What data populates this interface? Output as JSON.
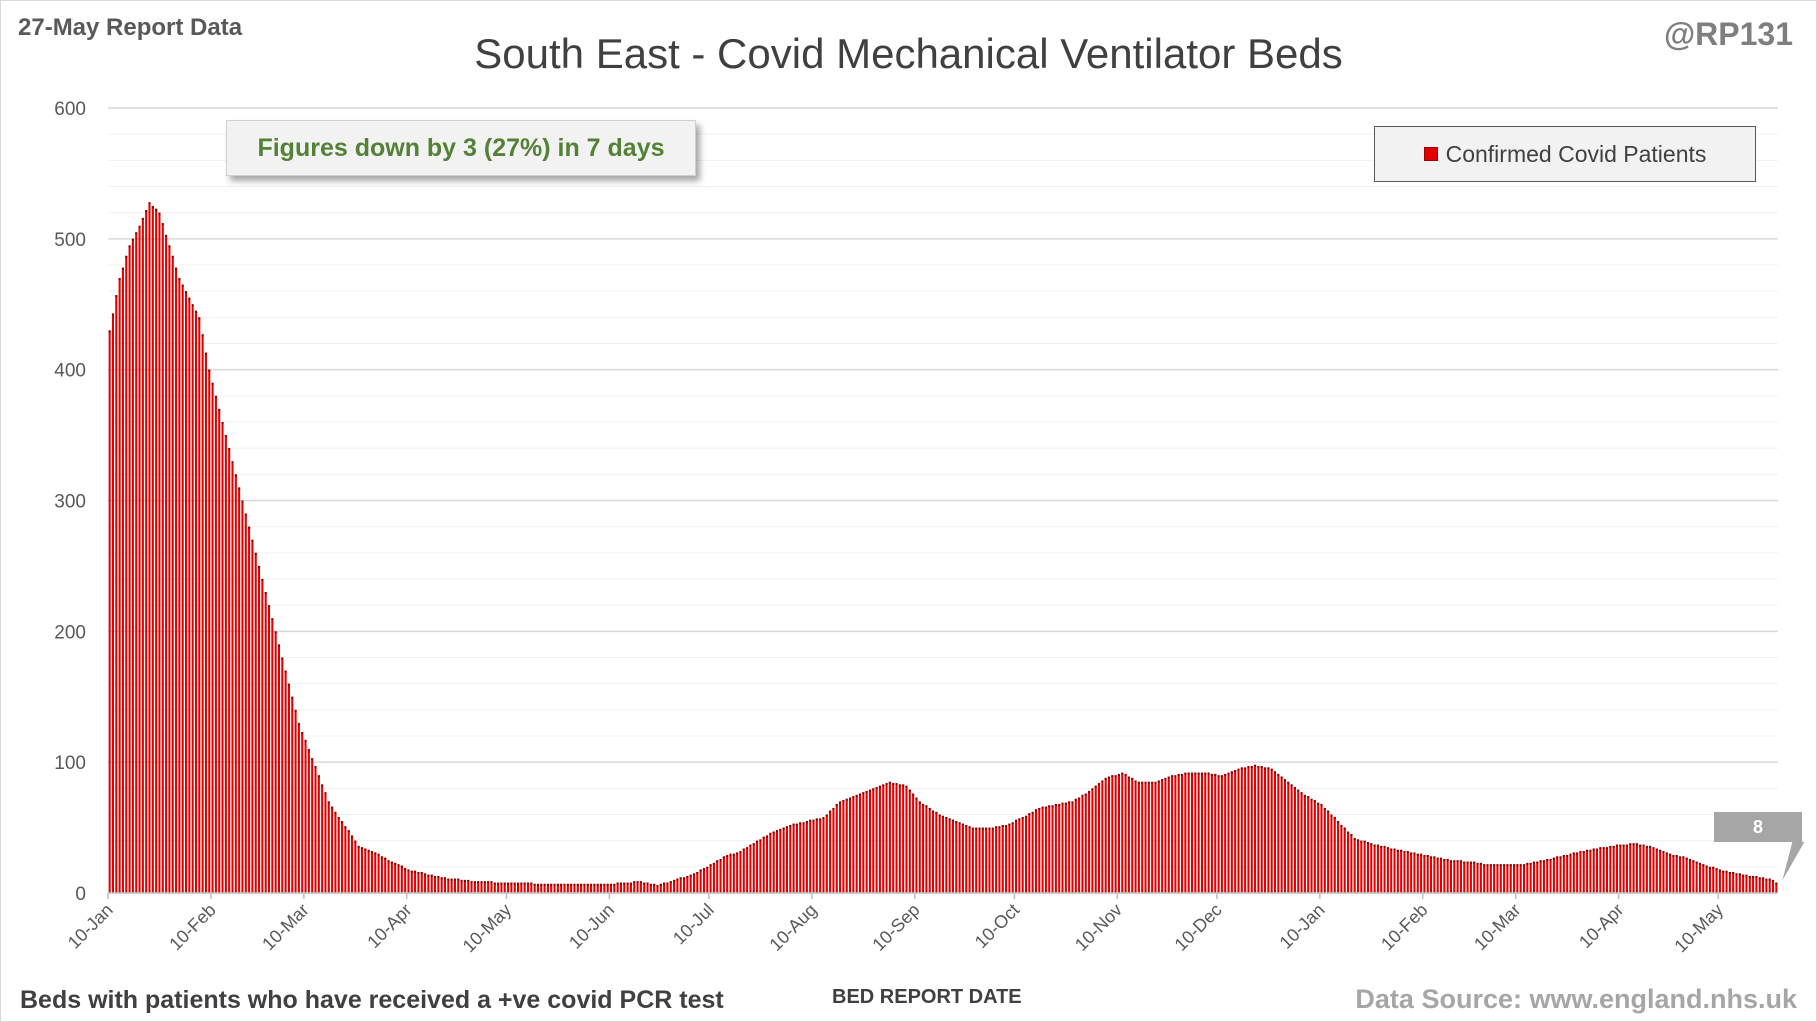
{
  "header": {
    "report_date": "27-May Report Data",
    "handle": "@RP131",
    "title": "South East - Covid Mechanical Ventilator Beds"
  },
  "callout": {
    "text": "Figures down by 3 (27%) in 7 days"
  },
  "footer": {
    "note": "Beds with patients who have received a +ve covid PCR test",
    "xlabel": "BED REPORT DATE",
    "source": "Data Source: www.england.nhs.uk"
  },
  "latest_value_label": "8",
  "chart_data": {
    "type": "bar",
    "title": "South East - Covid Mechanical Ventilator Beds",
    "xlabel": "BED REPORT DATE",
    "ylabel": "",
    "ylim": [
      0,
      600
    ],
    "y_ticks": [
      0,
      100,
      200,
      300,
      400,
      500,
      600
    ],
    "x_tick_labels": [
      "10-Jan",
      "10-Feb",
      "10-Mar",
      "10-Apr",
      "10-May",
      "10-Jun",
      "10-Jul",
      "10-Aug",
      "10-Sep",
      "10-Oct",
      "10-Nov",
      "10-Dec",
      "10-Jan",
      "10-Feb",
      "10-Mar",
      "10-Apr",
      "10-May"
    ],
    "x_tick_days": [
      0,
      31,
      59,
      90,
      120,
      151,
      181,
      212,
      243,
      273,
      304,
      334,
      365,
      396,
      424,
      455,
      485
    ],
    "grid": true,
    "legend": {
      "position": "top-right",
      "entries": [
        "Confirmed Covid Patients"
      ]
    },
    "series": [
      {
        "name": "Confirmed Covid Patients",
        "color": "#e00000",
        "anchors": [
          [
            0,
            430
          ],
          [
            3,
            470
          ],
          [
            6,
            495
          ],
          [
            9,
            510
          ],
          [
            12,
            528
          ],
          [
            15,
            520
          ],
          [
            18,
            495
          ],
          [
            21,
            470
          ],
          [
            24,
            455
          ],
          [
            27,
            440
          ],
          [
            30,
            400
          ],
          [
            33,
            370
          ],
          [
            36,
            340
          ],
          [
            39,
            310
          ],
          [
            42,
            280
          ],
          [
            45,
            250
          ],
          [
            48,
            220
          ],
          [
            51,
            190
          ],
          [
            54,
            160
          ],
          [
            57,
            130
          ],
          [
            60,
            110
          ],
          [
            63,
            90
          ],
          [
            66,
            70
          ],
          [
            69,
            58
          ],
          [
            72,
            48
          ],
          [
            75,
            36
          ],
          [
            78,
            33
          ],
          [
            81,
            30
          ],
          [
            84,
            25
          ],
          [
            87,
            22
          ],
          [
            90,
            18
          ],
          [
            95,
            15
          ],
          [
            100,
            12
          ],
          [
            110,
            9
          ],
          [
            120,
            8
          ],
          [
            135,
            7
          ],
          [
            150,
            7
          ],
          [
            160,
            9
          ],
          [
            165,
            6
          ],
          [
            170,
            10
          ],
          [
            175,
            14
          ],
          [
            180,
            20
          ],
          [
            185,
            28
          ],
          [
            190,
            32
          ],
          [
            195,
            40
          ],
          [
            200,
            47
          ],
          [
            205,
            52
          ],
          [
            210,
            55
          ],
          [
            215,
            58
          ],
          [
            220,
            70
          ],
          [
            225,
            75
          ],
          [
            230,
            80
          ],
          [
            235,
            85
          ],
          [
            240,
            82
          ],
          [
            244,
            70
          ],
          [
            250,
            60
          ],
          [
            255,
            55
          ],
          [
            260,
            50
          ],
          [
            265,
            50
          ],
          [
            270,
            52
          ],
          [
            275,
            58
          ],
          [
            280,
            65
          ],
          [
            285,
            68
          ],
          [
            290,
            70
          ],
          [
            295,
            78
          ],
          [
            300,
            88
          ],
          [
            305,
            92
          ],
          [
            310,
            85
          ],
          [
            315,
            85
          ],
          [
            320,
            90
          ],
          [
            325,
            92
          ],
          [
            330,
            92
          ],
          [
            335,
            90
          ],
          [
            340,
            95
          ],
          [
            345,
            98
          ],
          [
            350,
            95
          ],
          [
            355,
            85
          ],
          [
            360,
            75
          ],
          [
            365,
            68
          ],
          [
            370,
            55
          ],
          [
            375,
            42
          ],
          [
            380,
            38
          ],
          [
            385,
            35
          ],
          [
            390,
            32
          ],
          [
            395,
            30
          ],
          [
            400,
            27
          ],
          [
            405,
            25
          ],
          [
            410,
            24
          ],
          [
            415,
            22
          ],
          [
            420,
            22
          ],
          [
            425,
            22
          ],
          [
            430,
            24
          ],
          [
            435,
            27
          ],
          [
            440,
            30
          ],
          [
            445,
            33
          ],
          [
            450,
            35
          ],
          [
            455,
            37
          ],
          [
            460,
            38
          ],
          [
            465,
            35
          ],
          [
            470,
            30
          ],
          [
            475,
            27
          ],
          [
            480,
            22
          ],
          [
            485,
            18
          ],
          [
            490,
            15
          ],
          [
            495,
            13
          ],
          [
            500,
            11
          ],
          [
            502,
            8
          ]
        ]
      }
    ]
  }
}
